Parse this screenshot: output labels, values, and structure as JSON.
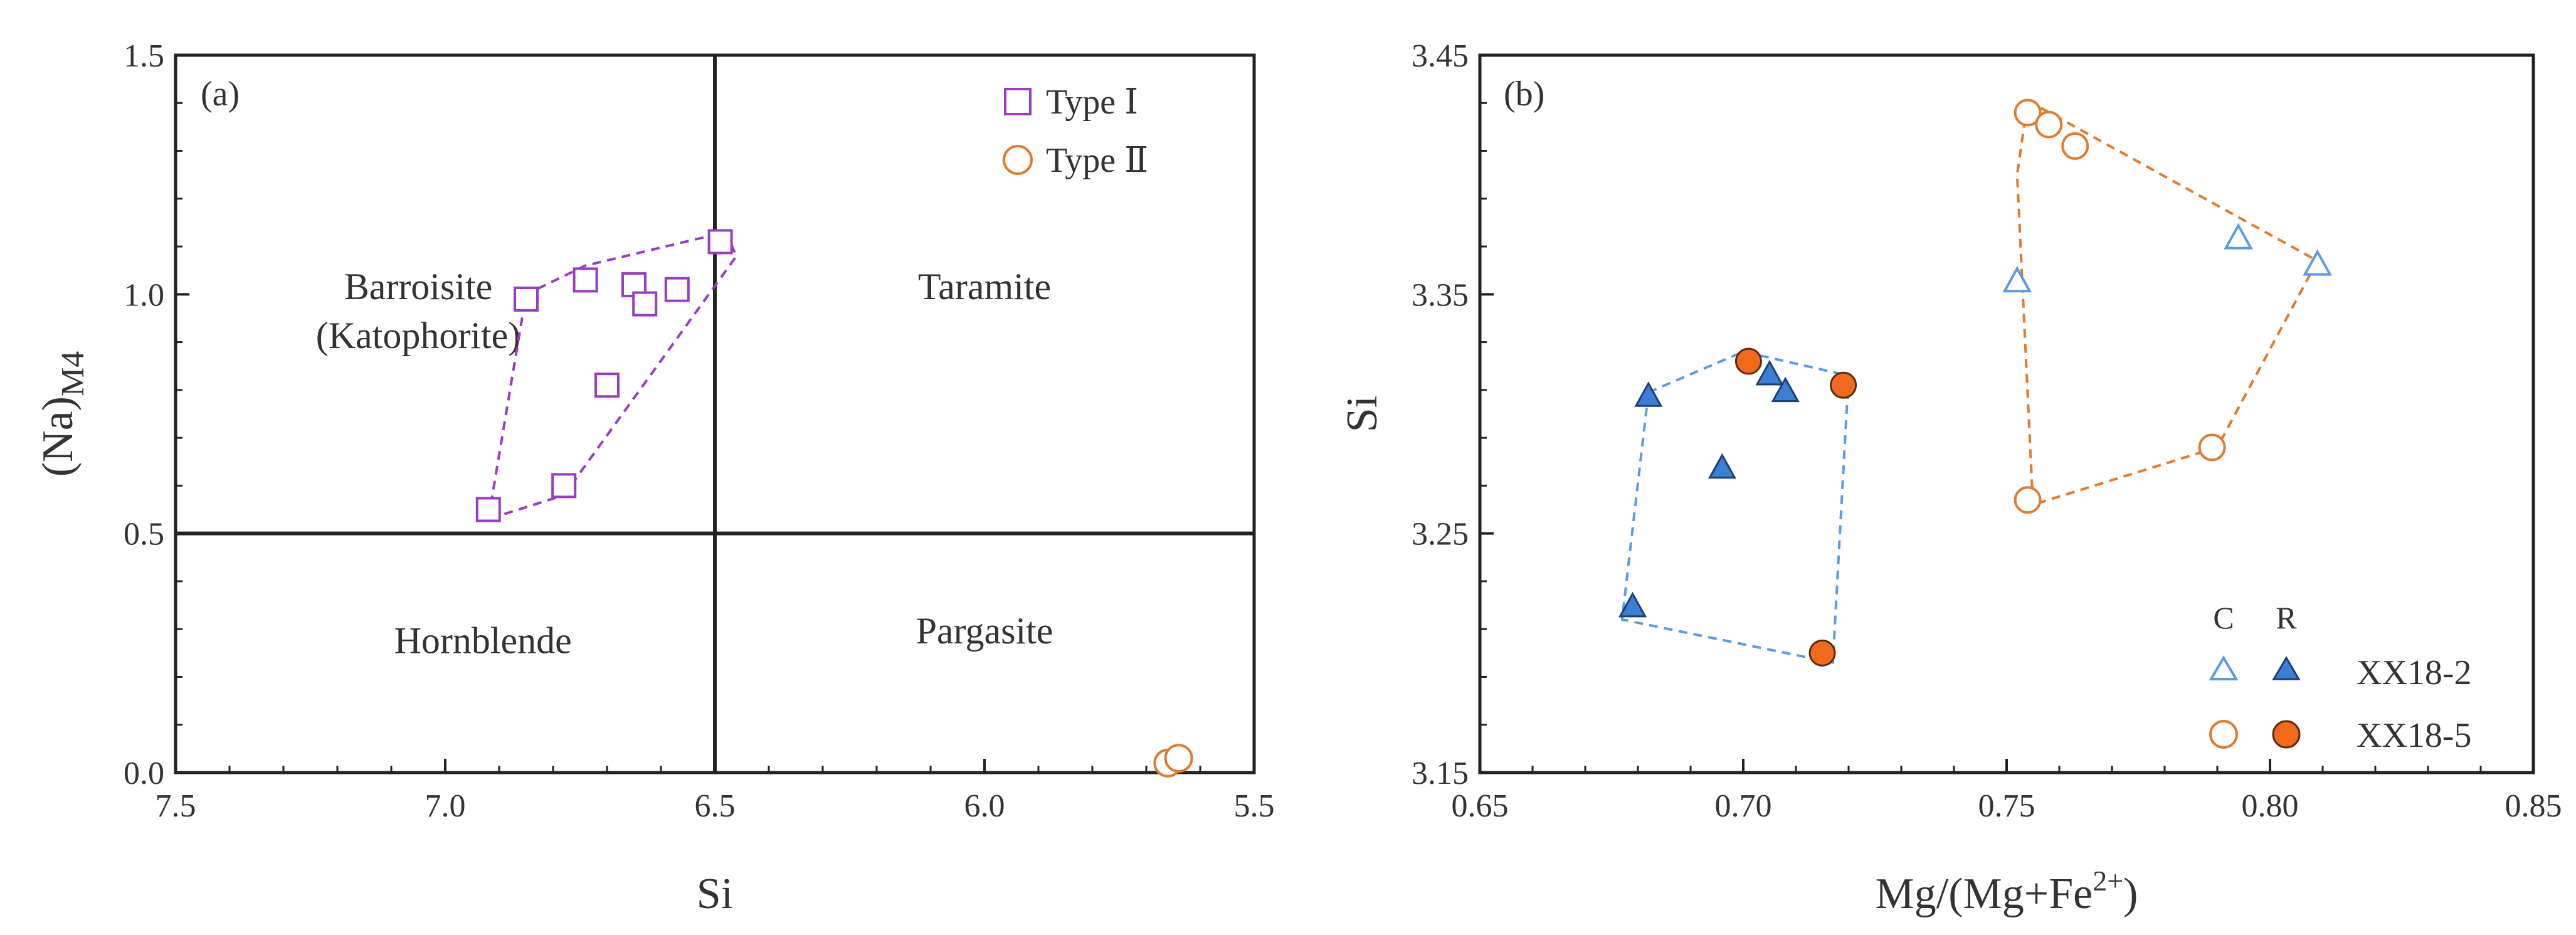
{
  "chart_data": [
    {
      "panel": "(a)",
      "type": "scatter",
      "xlabel": "Si",
      "ylabel_main": "(Na)",
      "ylabel_sub": "M4",
      "xlim": [
        7.5,
        5.5
      ],
      "ylim": [
        0.0,
        1.5
      ],
      "x_reversed": true,
      "xticks": [
        {
          "v": 7.5,
          "label": "7.5"
        },
        {
          "v": 7.0,
          "label": "7.0"
        },
        {
          "v": 6.5,
          "label": "6.5"
        },
        {
          "v": 6.0,
          "label": "6.0"
        },
        {
          "v": 5.5,
          "label": "5.5"
        }
      ],
      "yticks": [
        {
          "v": 0.0,
          "label": "0.0"
        },
        {
          "v": 0.5,
          "label": "0.5"
        },
        {
          "v": 1.0,
          "label": "1.0"
        },
        {
          "v": 1.5,
          "label": "1.5"
        }
      ],
      "dividers": {
        "x": 6.5,
        "y": 0.5
      },
      "regions": [
        {
          "lines": [
            "Barroisite",
            "(Katophorite)"
          ],
          "x": 7.05,
          "y": 0.99
        },
        {
          "lines": [
            "Taramite"
          ],
          "x": 6.0,
          "y": 0.99
        },
        {
          "lines": [
            "Hornblende"
          ],
          "x": 6.93,
          "y": 0.25
        },
        {
          "lines": [
            "Pargasite"
          ],
          "x": 6.0,
          "y": 0.27
        }
      ],
      "legend": {
        "placement": "top-right",
        "entries": [
          {
            "label": "Type Ⅰ",
            "marker": "square",
            "color": "#9b3cc0"
          },
          {
            "label": "Type Ⅱ",
            "marker": "circle",
            "color": "#e07b2a"
          }
        ]
      },
      "series": [
        {
          "name": "Type Ⅰ",
          "marker": "square",
          "color": "#9b3cc0",
          "points": [
            [
              6.92,
              0.55
            ],
            [
              6.85,
              0.99
            ],
            [
              6.78,
              0.6
            ],
            [
              6.74,
              1.03
            ],
            [
              6.7,
              0.81
            ],
            [
              6.65,
              1.02
            ],
            [
              6.63,
              0.98
            ],
            [
              6.57,
              1.01
            ],
            [
              6.49,
              1.11
            ]
          ],
          "envelope": [
            [
              6.92,
              0.53
            ],
            [
              6.85,
              1.0
            ],
            [
              6.74,
              1.06
            ],
            [
              6.48,
              1.13
            ],
            [
              6.46,
              1.08
            ],
            [
              6.78,
              0.58
            ]
          ]
        },
        {
          "name": "Type Ⅱ",
          "marker": "circle",
          "color": "#e07b2a",
          "points": [
            [
              5.66,
              0.02
            ],
            [
              5.64,
              0.03
            ]
          ]
        }
      ]
    },
    {
      "panel": "(b)",
      "type": "scatter",
      "xlabel_main": "Mg/(Mg+Fe",
      "xlabel_sup": "2+",
      "xlabel_end": ")",
      "ylabel": "Si",
      "xlim": [
        0.65,
        0.85
      ],
      "ylim": [
        3.15,
        3.45
      ],
      "xticks": [
        {
          "v": 0.65,
          "label": "0.65"
        },
        {
          "v": 0.7,
          "label": "0.70"
        },
        {
          "v": 0.75,
          "label": "0.75"
        },
        {
          "v": 0.8,
          "label": "0.80"
        },
        {
          "v": 0.85,
          "label": "0.85"
        }
      ],
      "yticks": [
        {
          "v": 3.15,
          "label": "3.15"
        },
        {
          "v": 3.25,
          "label": "3.25"
        },
        {
          "v": 3.35,
          "label": "3.35"
        },
        {
          "v": 3.45,
          "label": "3.45"
        }
      ],
      "legend": {
        "placement": "bottom-right",
        "col_headers": [
          "C",
          "R"
        ],
        "rows": [
          {
            "label": "XX18-2",
            "c_marker": "triangle-open",
            "r_marker": "triangle-filled",
            "color": "#3b7fd4",
            "fill": "#3b7fd4"
          },
          {
            "label": "XX18-5",
            "c_marker": "circle-open",
            "r_marker": "circle-filled",
            "color": "#e07b2a",
            "fill": "#f06a1c"
          }
        ]
      },
      "series": [
        {
          "name": "XX18-2 C",
          "marker": "triangle-open",
          "color": "#5b9be0",
          "points": [
            [
              0.752,
              3.355
            ],
            [
              0.794,
              3.373
            ],
            [
              0.809,
              3.362
            ]
          ]
        },
        {
          "name": "XX18-2 R",
          "marker": "triangle-filled",
          "color": "#3b7fd4",
          "points": [
            [
              0.682,
              3.307
            ],
            [
              0.696,
              3.277
            ],
            [
              0.705,
              3.316
            ],
            [
              0.708,
              3.309
            ],
            [
              0.679,
              3.219
            ]
          ]
        },
        {
          "name": "XX18-5 C",
          "marker": "circle-open",
          "color": "#e07b2a",
          "points": [
            [
              0.754,
              3.426
            ],
            [
              0.758,
              3.421
            ],
            [
              0.763,
              3.412
            ],
            [
              0.789,
              3.286
            ],
            [
              0.754,
              3.264
            ]
          ]
        },
        {
          "name": "XX18-5 R",
          "marker": "circle-filled",
          "color": "#f06a1c",
          "points": [
            [
              0.701,
              3.322
            ],
            [
              0.719,
              3.312
            ],
            [
              0.715,
              3.2
            ]
          ]
        }
      ],
      "envelopes": [
        {
          "color": "#5b9be0",
          "points": [
            [
              0.682,
              3.309
            ],
            [
              0.7,
              3.326
            ],
            [
              0.72,
              3.316
            ],
            [
              0.717,
              3.196
            ],
            [
              0.677,
              3.214
            ]
          ]
        },
        {
          "color": "#e07b2a",
          "points": [
            [
              0.754,
              3.431
            ],
            [
              0.809,
              3.364
            ],
            [
              0.79,
              3.286
            ],
            [
              0.755,
              3.262
            ],
            [
              0.752,
              3.4
            ]
          ]
        }
      ]
    }
  ]
}
